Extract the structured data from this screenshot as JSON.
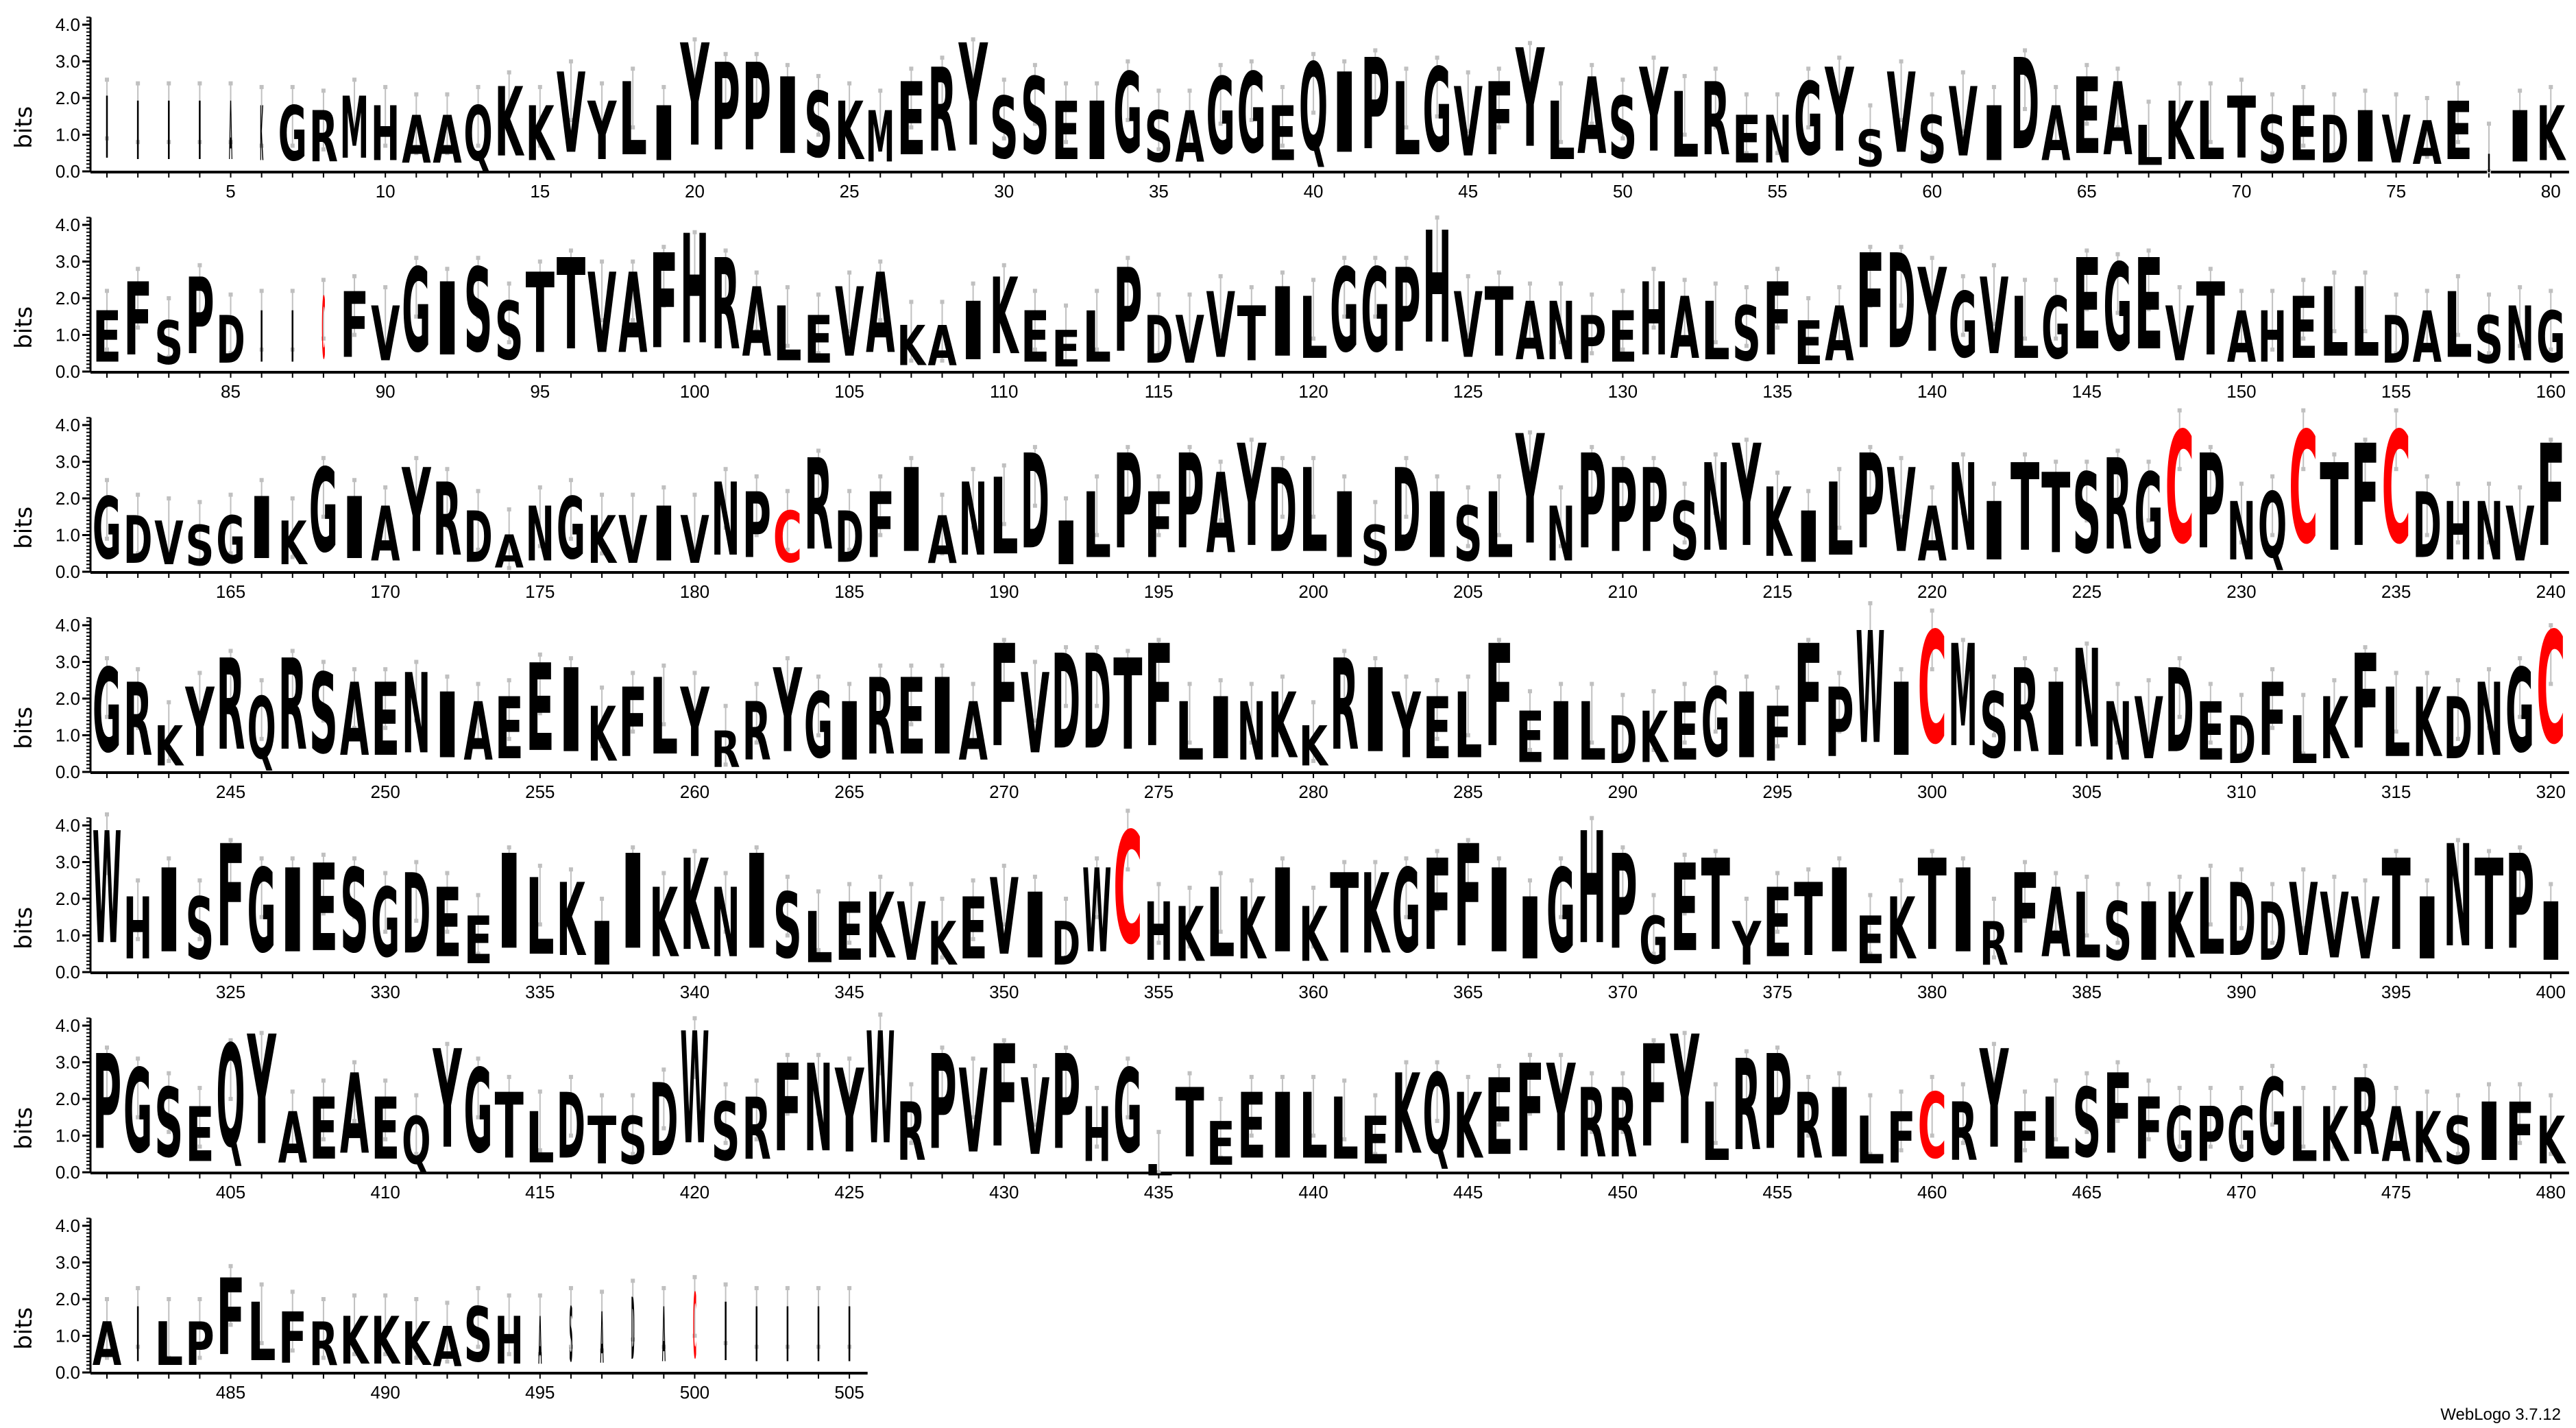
{
  "chart_data": {
    "type": "sequence-logo",
    "ylabel": "bits",
    "ylim": [
      0,
      4.2
    ],
    "y_ticks": [
      "0.0",
      "1.0",
      "2.0",
      "3.0",
      "4.0"
    ],
    "x_range": [
      1,
      505
    ],
    "x_tick_step": 5,
    "colors": {
      "default": "#000000",
      "C": "#ff0000",
      "error_bar": "#c0c0c0"
    },
    "low_weight_positions": [
      1,
      2,
      3,
      4,
      5,
      6,
      78,
      86,
      87,
      88,
      482,
      495,
      496,
      497,
      498,
      499,
      500,
      501,
      502,
      503,
      504,
      505
    ],
    "consensus": "IIIIAKGRMHAAQKKVYLIYPPISKMERYSSEIGSAGGEQIPLGVFYLASYLRENGYSVSVIDAEALKLTSEDIVAEIIKEFSPDIICFVGISSTTVAFHRALEVAKAIKEELPDVVTILGGPHVTANPEHALSFEAFDYGVLGEGEVTAHELLDALSNGGDVSGIKGIAYRDANGKVIVNPCRDFIANLDILPFPAYDLISDISLYNPPPSNYKILPVANITTSRGCPNQCTFCDHNVFGRKYRQRSAENIAEEIKFLYRRYGIREIAFVDDTFLINKKRIYELFEILDKEGIFFPWICMSRINNVDEDFLKFLKDNGCWHISFGIESGDEEILKIIKKNISLEKVKEVIDWCHKLKIKTKGFFIIGHPGETYETIEKTIRFALSIKLDDVVVTINTPIPGSEQYAEAEQYGTLDTSDWSRFNYWRPVFVPHGLTEEILLEKQKEFYRRFYLRPRILFCRYFLSFFGPGGLKRAKSIFKAILPFLFRKKKASHASADACIIIII",
    "heights": [
      1.7,
      1.6,
      1.6,
      1.6,
      1.6,
      1.5,
      1.5,
      1.4,
      1.7,
      1.5,
      1.3,
      1.3,
      1.5,
      1.9,
      1.5,
      2.2,
      1.6,
      2.0,
      1.5,
      2.8,
      2.4,
      2.4,
      2.1,
      1.8,
      1.6,
      1.4,
      2.0,
      2.3,
      2.8,
      1.7,
      2.1,
      1.6,
      1.6,
      2.2,
      1.4,
      1.4,
      2.1,
      2.2,
      1.5,
      2.4,
      2.2,
      2.5,
      2.0,
      2.3,
      1.9,
      2.0,
      2.7,
      1.6,
      2.1,
      1.7,
      2.3,
      1.8,
      2.0,
      1.3,
      1.3,
      2.0,
      2.3,
      1.0,
      2.2,
      1.3,
      1.9,
      1.5,
      2.5,
      1.5,
      2.1,
      2.0,
      1.1,
      1.6,
      1.6,
      1.7,
      1.3,
      1.5,
      1.3,
      1.4,
      1.3,
      1.2,
      1.6,
      0.5,
      1.4,
      1.5,
      1.4,
      2.0,
      1.2,
      2.1,
      1.3,
      1.4,
      1.4,
      1.7,
      1.8,
      1.5,
      2.3,
      2.0,
      2.3,
      1.6,
      2.2,
      2.5,
      2.2,
      2.2,
      2.6,
      3.0,
      2.5,
      1.9,
      1.5,
      1.3,
      1.9,
      2.2,
      1.1,
      1.1,
      1.6,
      2.1,
      1.4,
      1.0,
      1.4,
      2.3,
      1.3,
      1.3,
      1.8,
      1.5,
      1.9,
      1.7,
      2.3,
      2.3,
      2.3,
      3.4,
      1.8,
      1.9,
      1.6,
      1.6,
      1.3,
      1.4,
      2.0,
      1.7,
      1.6,
      1.5,
      2.0,
      1.2,
      1.5,
      2.6,
      2.6,
      2.3,
      1.8,
      2.1,
      1.7,
      1.7,
      2.5,
      2.4,
      2.5,
      1.5,
      2.0,
      1.4,
      1.4,
      1.7,
      1.9,
      1.9,
      1.3,
      1.4,
      1.8,
      1.3,
      1.5,
      1.4,
      1.7,
      1.3,
      1.2,
      1.1,
      1.3,
      1.7,
      1.2,
      2.3,
      1.7,
      1.5,
      2.3,
      2.0,
      1.4,
      0.9,
      1.5,
      1.7,
      1.3,
      1.3,
      1.5,
      1.3,
      2.0,
      1.8,
      1.4,
      2.5,
      1.4,
      1.8,
      2.3,
      1.3,
      2.0,
      2.1,
      2.6,
      1.2,
      1.8,
      2.6,
      1.8,
      2.6,
      2.2,
      2.8,
      2.3,
      2.3,
      1.8,
      1.1,
      2.3,
      1.8,
      1.5,
      1.8,
      3.0,
      1.5,
      2.6,
      2.3,
      2.3,
      1.6,
      2.4,
      2.8,
      1.9,
      1.4,
      2.0,
      2.6,
      2.3,
      1.5,
      2.4,
      1.6,
      2.4,
      2.2,
      2.2,
      2.5,
      2.2,
      3.6,
      2.6,
      1.6,
      1.8,
      3.6,
      2.4,
      2.8,
      3.6,
      1.8,
      1.6,
      1.6,
      1.5,
      2.8,
      2.3,
      2.0,
      1.1,
      1.9,
      2.5,
      1.7,
      2.5,
      2.2,
      2.0,
      2.0,
      2.2,
      1.8,
      1.6,
      1.7,
      2.4,
      2.3,
      1.5,
      1.9,
      2.1,
      1.9,
      1.0,
      1.6,
      2.3,
      1.8,
      1.6,
      2.1,
      2.1,
      2.1,
      1.6,
      2.8,
      2.2,
      2.6,
      2.6,
      2.5,
      2.8,
      1.6,
      1.7,
      1.6,
      1.8,
      1.1,
      2.5,
      2.3,
      1.8,
      1.7,
      1.8,
      2.8,
      1.4,
      1.6,
      1.6,
      1.3,
      1.4,
      1.6,
      1.9,
      1.8,
      1.5,
      2.8,
      1.9,
      3.8,
      2.0,
      3.6,
      2.8,
      1.8,
      2.3,
      2.0,
      2.7,
      1.6,
      1.7,
      2.3,
      1.6,
      1.3,
      2.0,
      1.3,
      1.7,
      2.6,
      1.9,
      1.9,
      1.7,
      2.0,
      2.3,
      3.2,
      3.5,
      1.7,
      2.3,
      1.7,
      2.8,
      2.3,
      2.3,
      2.4,
      2.3,
      1.9,
      2.2,
      1.9,
      1.3,
      2.6,
      2.1,
      2.0,
      1.2,
      2.6,
      1.9,
      2.5,
      1.9,
      2.6,
      1.8,
      1.4,
      1.6,
      1.8,
      1.6,
      1.2,
      1.7,
      2.1,
      1.8,
      1.2,
      2.3,
      3.6,
      1.6,
      1.5,
      1.9,
      1.7,
      2.3,
      1.5,
      2.2,
      2.2,
      2.3,
      2.5,
      2.8,
      2.3,
      1.7,
      2.3,
      3.4,
      2.6,
      1.3,
      2.4,
      2.5,
      1.2,
      1.9,
      2.0,
      2.3,
      1.3,
      1.7,
      2.5,
      2.3,
      1.2,
      2.2,
      1.9,
      1.8,
      1.6,
      1.6,
      1.8,
      2.1,
      2.0,
      1.6,
      2.0,
      1.8,
      1.7,
      2.5,
      1.7,
      2.8,
      2.5,
      2.6,
      1.6,
      2.6,
      2.3,
      1.9,
      1.5,
      2.8,
      3.0,
      1.4,
      1.7,
      2.2,
      1.7,
      1.3,
      2.7,
      2.3,
      1.8,
      1.4,
      1.8,
      1.3,
      1.3,
      2.0,
      3.4,
      1.6,
      1.7,
      2.4,
      2.4,
      2.3,
      3.5,
      1.6,
      2.6,
      2.3,
      2.8,
      2.1,
      2.6,
      1.5,
      2.3,
      0.3,
      1.9,
      1.2,
      1.8,
      1.8,
      1.8,
      1.7,
      1.3,
      2.2,
      2.2,
      1.8,
      2.1,
      2.4,
      2.4,
      1.9,
      1.9,
      2.8,
      3.0,
      1.6,
      2.5,
      2.6,
      1.8,
      1.9,
      1.3,
      1.4,
      1.8,
      1.6,
      2.7,
      1.4,
      1.7,
      1.9,
      2.2,
      1.7,
      1.5,
      1.5,
      1.5,
      2.1,
      1.5,
      1.5,
      2.1,
      1.5,
      1.4,
      1.3,
      1.6,
      1.6,
      1.3,
      1.2,
      1.5,
      1.2,
      1.2,
      2.1,
      1.6,
      1.4,
      1.2,
      1.3,
      1.3,
      1.2,
      1.1,
      1.5,
      1.3,
      1.3,
      1.5,
      1.4,
      1.7,
      1.5,
      1.8,
      1.6,
      1.5,
      1.5,
      1.5,
      1.5
    ]
  },
  "footer": {
    "credit": "WebLogo 3.7.12"
  }
}
